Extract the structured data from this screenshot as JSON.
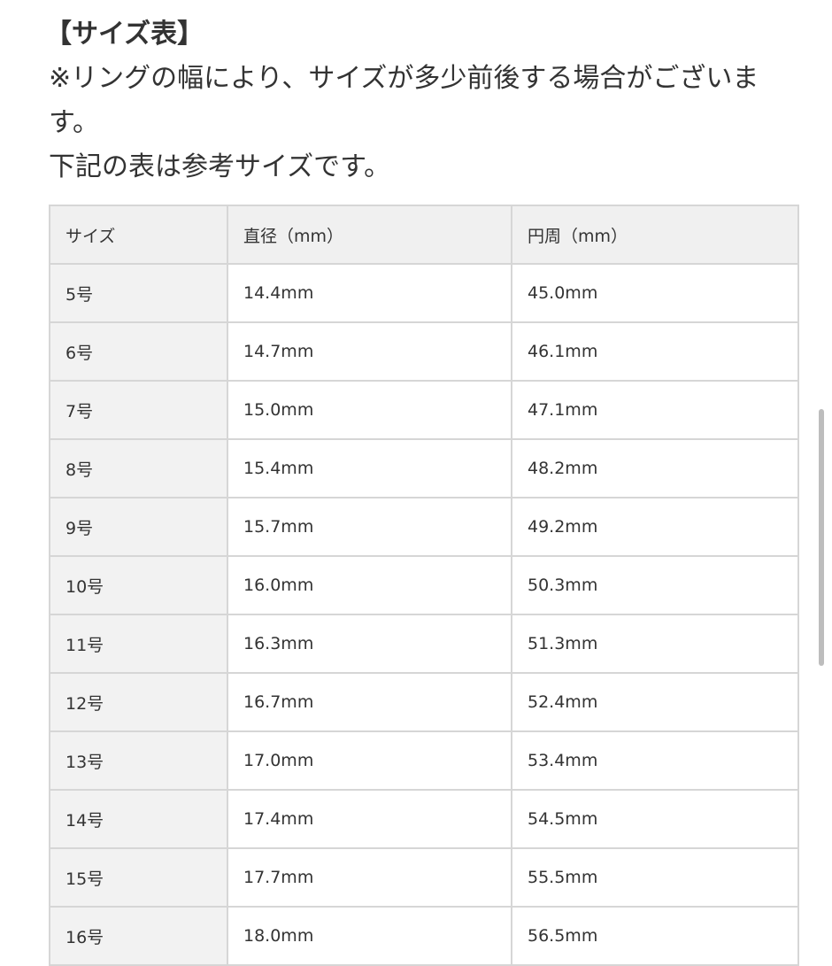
{
  "intro": {
    "title": "【サイズ表】",
    "note": "※リングの幅により、サイズが多少前後する場合がございます。",
    "reference": "下記の表は参考サイズです。"
  },
  "table": {
    "headers": [
      "サイズ",
      "直径（mm）",
      "円周（mm）"
    ],
    "rows": [
      [
        "5号",
        "14.4mm",
        "45.0mm"
      ],
      [
        "6号",
        "14.7mm",
        "46.1mm"
      ],
      [
        "7号",
        "15.0mm",
        "47.1mm"
      ],
      [
        "8号",
        "15.4mm",
        "48.2mm"
      ],
      [
        "9号",
        "15.7mm",
        "49.2mm"
      ],
      [
        "10号",
        "16.0mm",
        "50.3mm"
      ],
      [
        "11号",
        "16.3mm",
        "51.3mm"
      ],
      [
        "12号",
        "16.7mm",
        "52.4mm"
      ],
      [
        "13号",
        "17.0mm",
        "53.4mm"
      ],
      [
        "14号",
        "17.4mm",
        "54.5mm"
      ],
      [
        "15号",
        "17.7mm",
        "55.5mm"
      ],
      [
        "16号",
        "18.0mm",
        "56.5mm"
      ]
    ]
  }
}
